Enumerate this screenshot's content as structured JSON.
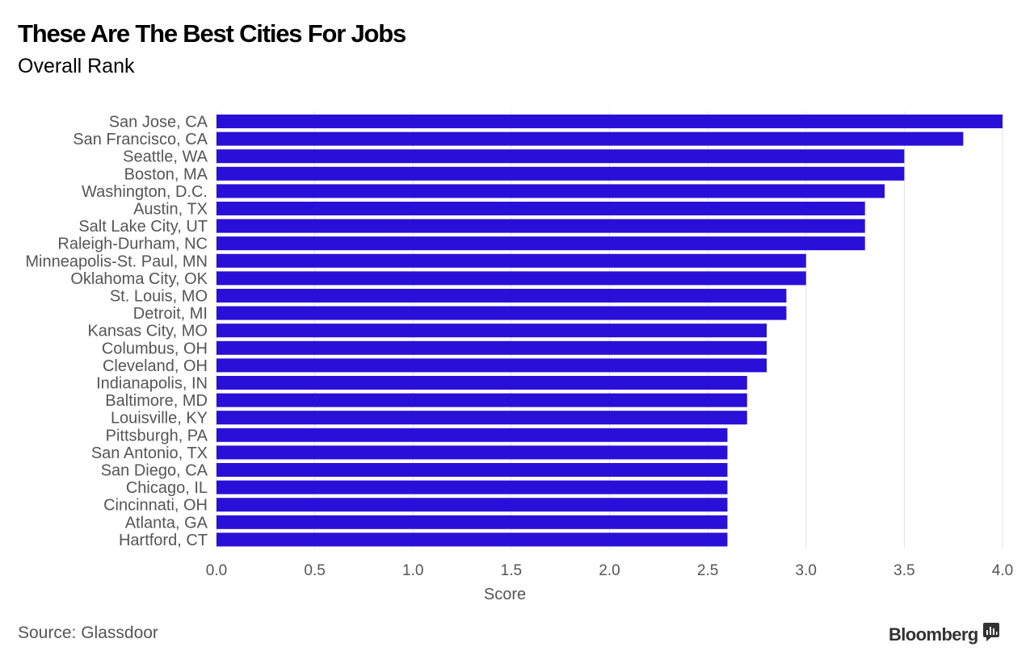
{
  "header": {
    "title": "These Are The Best Cities For Jobs",
    "subtitle": "Overall Rank"
  },
  "footer": {
    "source": "Source: Glassdoor",
    "brand": "Bloomberg"
  },
  "chart_data": {
    "type": "bar",
    "orientation": "horizontal",
    "title": "These Are The Best Cities For Jobs",
    "subtitle": "Overall Rank",
    "xlabel": "Score",
    "ylabel": "",
    "xlim": [
      0,
      4
    ],
    "xticks": [
      "0.0",
      "0.5",
      "1.0",
      "1.5",
      "2.0",
      "2.5",
      "3.0",
      "3.5",
      "4.0"
    ],
    "grid": true,
    "bar_color": "#2a0fd8",
    "categories": [
      "San Jose, CA",
      "San Francisco, CA",
      "Seattle, WA",
      "Boston, MA",
      "Washington, D.C.",
      "Austin, TX",
      "Salt Lake City, UT",
      "Raleigh-Durham, NC",
      "Minneapolis-St. Paul, MN",
      "Oklahoma City, OK",
      "St. Louis, MO",
      "Detroit, MI",
      "Kansas City, MO",
      "Columbus, OH",
      "Cleveland, OH",
      "Indianapolis, IN",
      "Baltimore, MD",
      "Louisville, KY",
      "Pittsburgh, PA",
      "San Antonio, TX",
      "San Diego, CA",
      "Chicago, IL",
      "Cincinnati, OH",
      "Atlanta, GA",
      "Hartford, CT"
    ],
    "values": [
      4.0,
      3.8,
      3.5,
      3.5,
      3.4,
      3.3,
      3.3,
      3.3,
      3.0,
      3.0,
      2.9,
      2.9,
      2.8,
      2.8,
      2.8,
      2.7,
      2.7,
      2.7,
      2.6,
      2.6,
      2.6,
      2.6,
      2.6,
      2.6,
      2.6
    ]
  }
}
